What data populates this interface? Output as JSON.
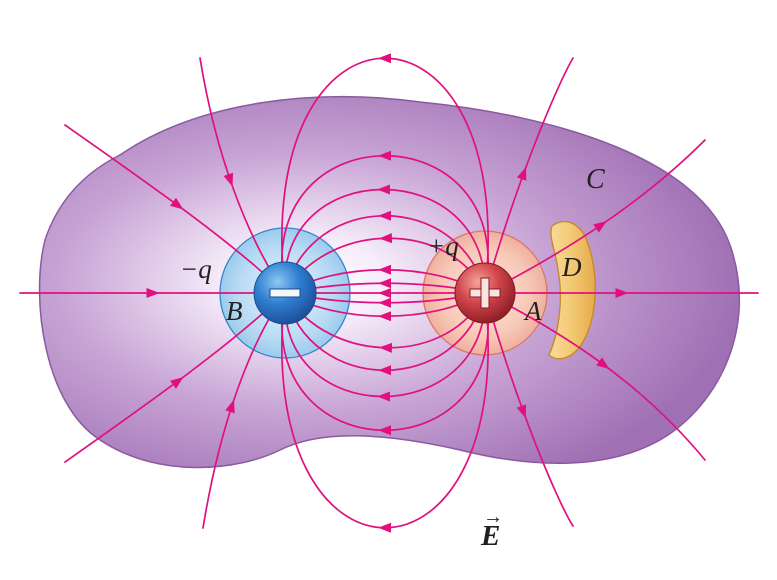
{
  "labels": {
    "neg_charge": "−q",
    "pos_charge": "+q",
    "point_a": "A",
    "point_b": "B",
    "surface_c": "C",
    "conductor_d": "D",
    "field": "E",
    "field_vector_mark": "→"
  },
  "symbols": {
    "neg_sign": "minus-icon",
    "pos_sign": "plus-icon"
  },
  "colors": {
    "field_line": "#e0117f",
    "surface_fill": "#a573b8",
    "surface_edge": "#8a5a9e",
    "neg_charge": "#2f7fd1",
    "neg_halo": "#a9d3f0",
    "pos_charge": "#d0444a",
    "pos_halo": "#f3b9a8",
    "conductor": "#f3c873",
    "conductor_edge": "#c48b2a"
  }
}
